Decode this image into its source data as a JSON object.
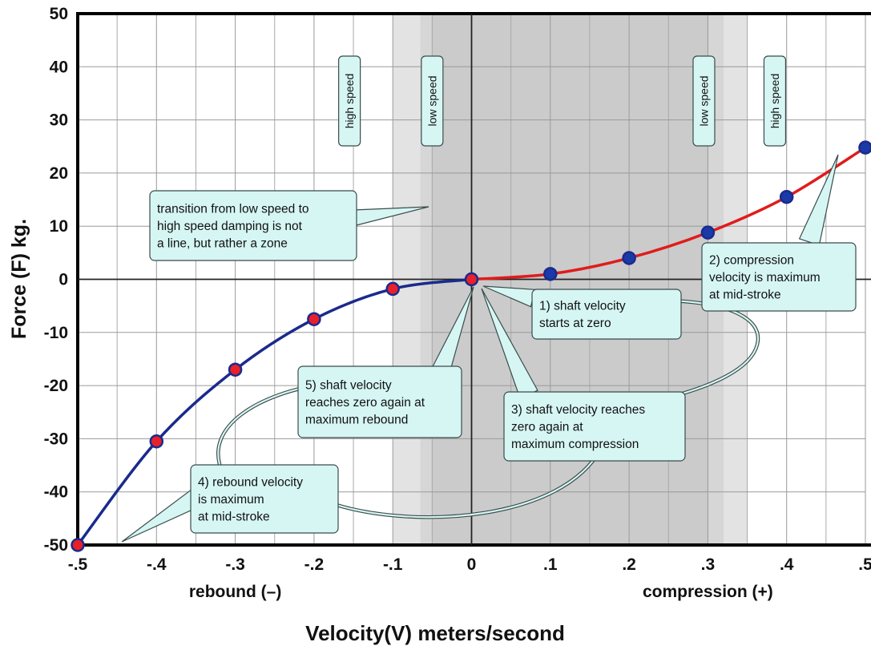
{
  "chart_data": {
    "type": "line",
    "xlabel": "Velocity(V) meters/second",
    "ylabel": "Force (F) kg.",
    "xlim": [
      -0.5,
      0.5
    ],
    "ylim": [
      -50,
      50
    ],
    "x_ticks": [
      -0.5,
      -0.4,
      -0.3,
      -0.2,
      -0.1,
      0,
      0.1,
      0.2,
      0.3,
      0.4,
      0.5
    ],
    "x_tick_labels": [
      "-.5",
      "-.4",
      "-.3",
      "-.2",
      "-.1",
      "0",
      ".1",
      ".2",
      ".3",
      ".4",
      ".5"
    ],
    "y_ticks": [
      -50,
      -40,
      -30,
      -20,
      -10,
      0,
      10,
      20,
      30,
      40,
      50
    ],
    "y_tick_labels": [
      "-50",
      "-40",
      "-30",
      "-20",
      "-10",
      "0",
      "10",
      "20",
      "30",
      "40",
      "50"
    ],
    "x_sublabels": {
      "rebound": "rebound (–)",
      "compression": "compression (+)"
    },
    "grid": true,
    "series": [
      {
        "color": "#1a2a8c",
        "marker_fill": "#e8202a",
        "x": [
          -0.5,
          -0.4,
          -0.3,
          -0.2,
          -0.1,
          0
        ],
        "y": [
          -50,
          -30.5,
          -17,
          -7.5,
          -1.8,
          0
        ]
      },
      {
        "color": "#e01c1c",
        "marker_fill": "#1a3aa8",
        "x": [
          0,
          0.1,
          0.2,
          0.3,
          0.4,
          0.5
        ],
        "y": [
          0,
          1,
          4,
          8.8,
          15.5,
          24.8
        ]
      }
    ],
    "zones": {
      "outer": [
        -0.1,
        0.35
      ],
      "inner": [
        -0.065,
        0.32
      ],
      "band_labels": [
        {
          "text": "high speed",
          "x": -0.155
        },
        {
          "text": "low speed",
          "x": -0.05
        },
        {
          "text": "low speed",
          "x": 0.295
        },
        {
          "text": "high speed",
          "x": 0.385
        }
      ]
    },
    "annotations": [
      {
        "lines": [
          "transition from low speed to",
          "high speed damping is not",
          "a line, but rather a zone"
        ]
      },
      {
        "lines": [
          "2) compression",
          "velocity is maximum",
          "at mid-stroke"
        ]
      },
      {
        "lines": [
          "1) shaft velocity",
          "starts at zero"
        ]
      },
      {
        "lines": [
          "5) shaft velocity",
          "reaches zero again at",
          "maximum rebound"
        ]
      },
      {
        "lines": [
          "3) shaft velocity reaches",
          "zero again at",
          "maximum compression"
        ]
      },
      {
        "lines": [
          "4) rebound velocity",
          "is maximum",
          "at mid-stroke"
        ]
      }
    ]
  }
}
